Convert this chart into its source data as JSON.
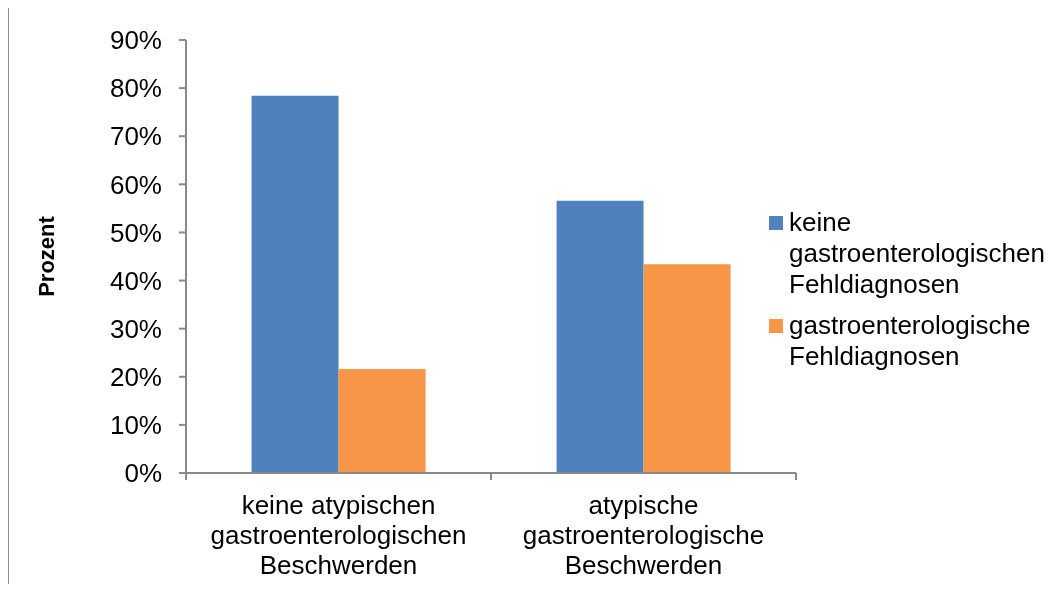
{
  "chart_data": {
    "type": "bar",
    "categories": [
      "keine atypischen gastroenterologischen Beschwerden",
      "atypische gastroenterologische Beschwerden"
    ],
    "series": [
      {
        "name": "keine gastroenterologischen Fehldiagnosen",
        "color": "#4f81bd",
        "values": [
          78.4,
          56.6
        ]
      },
      {
        "name": "gastroenterologische Fehldiagnosen",
        "color": "#f79646",
        "values": [
          21.6,
          43.4
        ]
      }
    ],
    "ylabel": "Prozent",
    "ylim": [
      0,
      90
    ],
    "yticks": [
      {
        "value": 0,
        "label": "0%"
      },
      {
        "value": 10,
        "label": "10%"
      },
      {
        "value": 20,
        "label": "20%"
      },
      {
        "value": 30,
        "label": "30%"
      },
      {
        "value": 40,
        "label": "40%"
      },
      {
        "value": 50,
        "label": "50%"
      },
      {
        "value": 60,
        "label": "60%"
      },
      {
        "value": 70,
        "label": "70%"
      },
      {
        "value": 80,
        "label": "80%"
      },
      {
        "value": 90,
        "label": "90%"
      }
    ],
    "legend": "right"
  }
}
